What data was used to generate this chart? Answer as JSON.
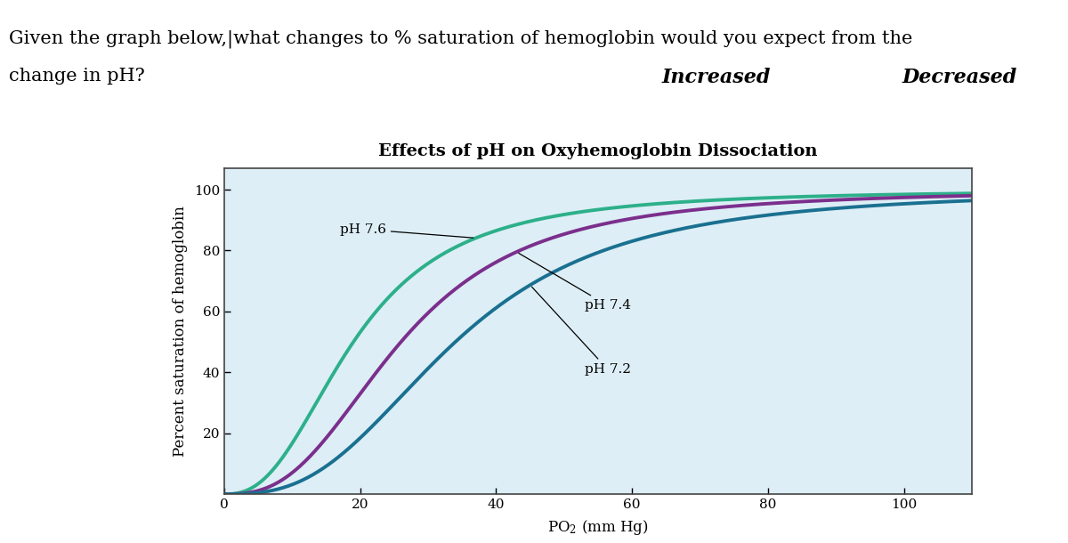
{
  "title": "Effects of pH on Oxyhemoglobin Dissociation",
  "ylabel": "Percent saturation of hemoglobin",
  "xlabel": "PΟ₂ (mm Hg)",
  "question_line1": "Given the graph below,|what changes to % saturation of hemoglobin would you expect from the",
  "question_line2": "change in pH?",
  "answer_increased": "Increased",
  "answer_decreased": "Decreased",
  "xlim": [
    0,
    110
  ],
  "ylim": [
    0,
    107
  ],
  "xticks": [
    0,
    20,
    40,
    60,
    80,
    100
  ],
  "yticks": [
    20,
    40,
    60,
    80,
    100
  ],
  "curves": [
    {
      "label": "pH 7.6",
      "color": "#2db08a",
      "n": 2.5,
      "p50": 19
    },
    {
      "label": "pH 7.4",
      "color": "#7b2f8c",
      "n": 2.7,
      "p50": 26
    },
    {
      "label": "pH 7.2",
      "color": "#1a7090",
      "n": 2.8,
      "p50": 34
    }
  ],
  "bg_color": "#ddeef6",
  "label_fontsize": 11,
  "title_fontsize": 14,
  "axis_label_fontsize": 12,
  "question_fontsize": 15,
  "answer_fontsize": 16
}
